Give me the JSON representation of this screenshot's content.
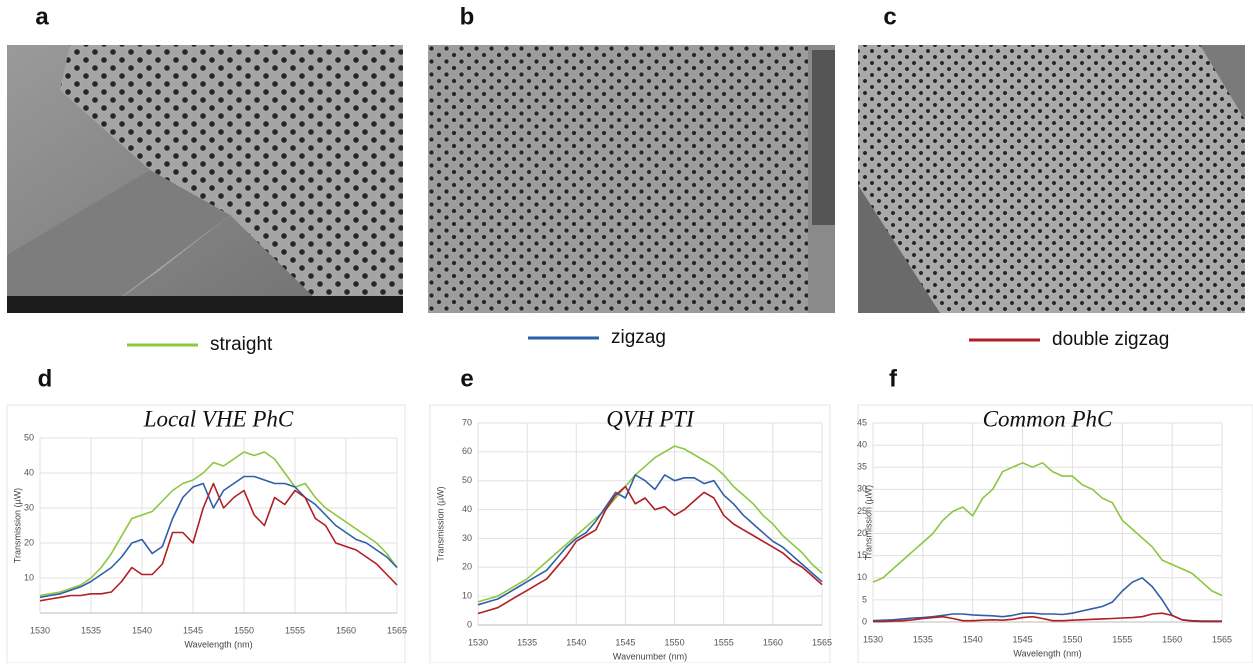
{
  "panel_labels": [
    "a",
    "b",
    "c",
    "d",
    "e",
    "f"
  ],
  "legend": [
    {
      "name": "straight",
      "color": "#8dc63f"
    },
    {
      "name": "zigzag",
      "color": "#2e5fa8"
    },
    {
      "name": "double zigzag",
      "color": "#b01f24"
    }
  ],
  "chart_data": [
    {
      "type": "line",
      "title": "Local VHE PhC",
      "x_label": "Wavelength (nm)",
      "y_label": "Transmission (µW)",
      "x": [
        1530,
        1531,
        1532,
        1533,
        1534,
        1535,
        1536,
        1537,
        1538,
        1539,
        1540,
        1541,
        1542,
        1543,
        1544,
        1545,
        1546,
        1547,
        1548,
        1549,
        1550,
        1551,
        1552,
        1553,
        1554,
        1555,
        1556,
        1557,
        1558,
        1559,
        1560,
        1561,
        1562,
        1563,
        1564,
        1565
      ],
      "xlim": [
        1530,
        1565
      ],
      "xticks": [
        1530,
        1535,
        1540,
        1545,
        1550,
        1555,
        1560,
        1565
      ],
      "ylim": [
        0,
        50
      ],
      "yticks": [
        10,
        20,
        30,
        40,
        50
      ],
      "grid": true,
      "series": [
        {
          "values": [
            5,
            5.5,
            6,
            7,
            8,
            10,
            13,
            17,
            22,
            27,
            28,
            29,
            32,
            35,
            37,
            38,
            40,
            43,
            42,
            44,
            46,
            45,
            46,
            44,
            40,
            36,
            37,
            33,
            30,
            28,
            26,
            24,
            22,
            20,
            17,
            13
          ]
        },
        {
          "values": [
            4.5,
            5,
            5.5,
            6.5,
            7.5,
            9,
            11,
            13,
            16,
            20,
            21,
            17,
            19,
            27,
            33,
            36,
            37,
            30,
            35,
            37,
            39,
            39,
            38,
            37,
            37,
            36,
            33,
            31,
            28,
            25,
            23,
            21,
            20,
            18,
            16,
            13
          ]
        },
        {
          "values": [
            3.5,
            4,
            4.5,
            5,
            5,
            5.5,
            5.5,
            6,
            9,
            13,
            11,
            11,
            14,
            23,
            23,
            20,
            30,
            37,
            30,
            33,
            35,
            28,
            25,
            33,
            31,
            35,
            33,
            27,
            25,
            20,
            19,
            18,
            16,
            14,
            11,
            8
          ]
        }
      ]
    },
    {
      "type": "line",
      "title": "QVH PTI",
      "x_label": "Wavenumber (nm)",
      "y_label": "Transmission (µW)",
      "x": [
        1530,
        1531,
        1532,
        1533,
        1534,
        1535,
        1536,
        1537,
        1538,
        1539,
        1540,
        1541,
        1542,
        1543,
        1544,
        1545,
        1546,
        1547,
        1548,
        1549,
        1550,
        1551,
        1552,
        1553,
        1554,
        1555,
        1556,
        1557,
        1558,
        1559,
        1560,
        1561,
        1562,
        1563,
        1564,
        1565
      ],
      "xlim": [
        1530,
        1565
      ],
      "xticks": [
        1530,
        1535,
        1540,
        1545,
        1550,
        1555,
        1560,
        1565
      ],
      "ylim": [
        0,
        70
      ],
      "yticks": [
        0,
        10,
        20,
        30,
        40,
        50,
        60,
        70
      ],
      "grid": true,
      "series": [
        {
          "values": [
            8,
            9,
            10,
            12,
            14,
            16,
            19,
            22,
            25,
            28,
            31,
            34,
            37,
            40,
            44,
            48,
            52,
            55,
            58,
            60,
            62,
            61,
            59,
            57,
            55,
            52,
            48,
            45,
            42,
            38,
            35,
            31,
            28,
            25,
            21,
            18
          ]
        },
        {
          "values": [
            7,
            8,
            9,
            11,
            13,
            15,
            17,
            19,
            23,
            27,
            30,
            32,
            36,
            41,
            46,
            44,
            52,
            50,
            47,
            52,
            50,
            51,
            51,
            49,
            50,
            45,
            42,
            38,
            35,
            32,
            29,
            27,
            24,
            21,
            18,
            15
          ]
        },
        {
          "values": [
            4,
            5,
            6,
            8,
            10,
            12,
            14,
            16,
            20,
            24,
            29,
            31,
            33,
            40,
            45,
            48,
            42,
            44,
            40,
            41,
            38,
            40,
            43,
            46,
            44,
            38,
            35,
            33,
            31,
            29,
            27,
            25,
            22,
            20,
            17,
            14
          ]
        }
      ]
    },
    {
      "type": "line",
      "title": "Common PhC",
      "x_label": "Wavelength (nm)",
      "y_label": "Transmission (µW)",
      "x": [
        1530,
        1531,
        1532,
        1533,
        1534,
        1535,
        1536,
        1537,
        1538,
        1539,
        1540,
        1541,
        1542,
        1543,
        1544,
        1545,
        1546,
        1547,
        1548,
        1549,
        1550,
        1551,
        1552,
        1553,
        1554,
        1555,
        1556,
        1557,
        1558,
        1559,
        1560,
        1561,
        1562,
        1563,
        1564,
        1565
      ],
      "xlim": [
        1530,
        1565
      ],
      "xticks": [
        1530,
        1535,
        1540,
        1545,
        1550,
        1555,
        1560,
        1565
      ],
      "ylim": [
        0,
        45
      ],
      "yticks": [
        0,
        5,
        10,
        15,
        20,
        25,
        30,
        35,
        40,
        45
      ],
      "grid": true,
      "series": [
        {
          "values": [
            9,
            10,
            12,
            14,
            16,
            18,
            20,
            23,
            25,
            26,
            24,
            28,
            30,
            34,
            35,
            36,
            35,
            36,
            34,
            33,
            33,
            31,
            30,
            28,
            27,
            23,
            21,
            19,
            17,
            14,
            13,
            12,
            11,
            9,
            7,
            6
          ]
        },
        {
          "values": [
            0.3,
            0.4,
            0.5,
            0.7,
            0.9,
            1,
            1.2,
            1.5,
            1.8,
            1.8,
            1.6,
            1.5,
            1.4,
            1.2,
            1.5,
            2,
            2,
            1.8,
            1.8,
            1.7,
            2,
            2.5,
            3,
            3.5,
            4.5,
            7,
            9,
            10,
            8,
            5,
            1.5,
            0.5,
            0.3,
            0.2,
            0.2,
            0.2
          ]
        },
        {
          "values": [
            0.1,
            0.1,
            0.2,
            0.3,
            0.5,
            0.8,
            1,
            1.2,
            0.8,
            0.3,
            0.3,
            0.4,
            0.5,
            0.4,
            0.6,
            1,
            1.2,
            0.8,
            0.3,
            0.3,
            0.4,
            0.5,
            0.6,
            0.7,
            0.8,
            0.9,
            1,
            1.2,
            1.8,
            2,
            1.5,
            0.5,
            0.2,
            0.1,
            0.1,
            0.1
          ]
        }
      ]
    }
  ]
}
